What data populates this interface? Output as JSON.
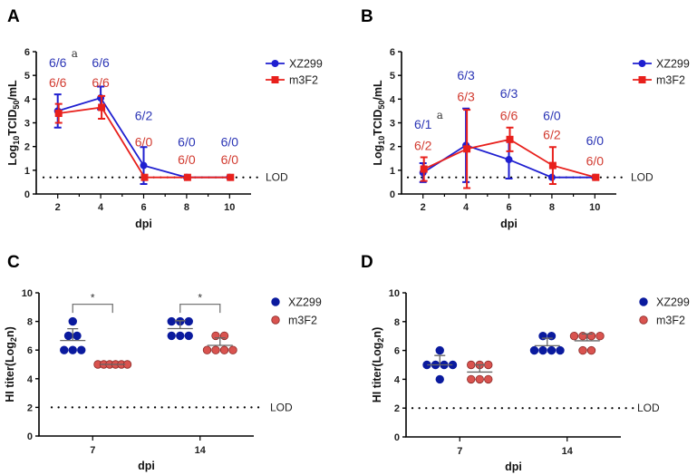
{
  "chart_data": [
    {
      "panel": "A",
      "type": "line",
      "xlabel": "dpi",
      "ylabel": {
        "base": "Log",
        "sub1": "10",
        "mid": "TCID",
        "sub2": "50",
        "end": "/mL"
      },
      "x": [
        2,
        4,
        6,
        8,
        10
      ],
      "xticks": [
        "2",
        "4",
        "6",
        "8",
        "10"
      ],
      "xlim": [
        1,
        11
      ],
      "ylim": [
        0,
        6
      ],
      "yticks": [
        "0",
        "1",
        "2",
        "3",
        "4",
        "5",
        "6"
      ],
      "grid": false,
      "legend": "top-right",
      "lod": {
        "value": 0.7,
        "label": "LOD"
      },
      "series": [
        {
          "name": "XZ299",
          "color": "#1f1fd0",
          "marker": "circle",
          "values": [
            3.5,
            4.05,
            1.2,
            0.7,
            0.7
          ],
          "errors": [
            0.7,
            0.48,
            0.78,
            0,
            0
          ]
        },
        {
          "name": "m3F2",
          "color": "#e8201c",
          "marker": "square",
          "values": [
            3.4,
            3.65,
            0.7,
            0.7,
            0.7
          ],
          "errors": [
            0.4,
            0.48,
            0,
            0,
            0
          ]
        }
      ],
      "annotations": [
        {
          "x": 2,
          "y": 5.55,
          "text": "6/6",
          "series": 0,
          "footnote": "a"
        },
        {
          "x": 2,
          "y": 4.7,
          "text": "6/6",
          "series": 1
        },
        {
          "x": 4,
          "y": 5.55,
          "text": "6/6",
          "series": 0
        },
        {
          "x": 4,
          "y": 4.7,
          "text": "6/6",
          "series": 1
        },
        {
          "x": 6,
          "y": 3.3,
          "text": "6/2",
          "series": 0
        },
        {
          "x": 6,
          "y": 2.2,
          "text": "6/0",
          "series": 1
        },
        {
          "x": 8,
          "y": 2.2,
          "text": "6/0",
          "series": 0
        },
        {
          "x": 8,
          "y": 1.45,
          "text": "6/0",
          "series": 1
        },
        {
          "x": 10,
          "y": 2.2,
          "text": "6/0",
          "series": 0
        },
        {
          "x": 10,
          "y": 1.45,
          "text": "6/0",
          "series": 1
        }
      ]
    },
    {
      "panel": "B",
      "type": "line",
      "xlabel": "dpi",
      "ylabel": {
        "base": "Log",
        "sub1": "10",
        "mid": "TCID",
        "sub2": "50",
        "end": "/mL"
      },
      "x": [
        2,
        4,
        6,
        8,
        10
      ],
      "xticks": [
        "2",
        "4",
        "6",
        "8",
        "10"
      ],
      "xlim": [
        1,
        11
      ],
      "ylim": [
        0,
        6
      ],
      "yticks": [
        "0",
        "1",
        "2",
        "3",
        "4",
        "5",
        "6"
      ],
      "grid": false,
      "legend": "top-right",
      "lod": {
        "value": 0.7,
        "label": "LOD"
      },
      "series": [
        {
          "name": "XZ299",
          "color": "#1f1fd0",
          "marker": "circle",
          "values": [
            0.9,
            2.05,
            1.45,
            0.7,
            0.7
          ],
          "errors": [
            0.4,
            1.55,
            0.8,
            0,
            0
          ]
        },
        {
          "name": "m3F2",
          "color": "#e8201c",
          "marker": "square",
          "values": [
            1.05,
            1.9,
            2.3,
            1.2,
            0.7
          ],
          "errors": [
            0.5,
            1.65,
            0.5,
            0.78,
            0
          ]
        }
      ],
      "annotations": [
        {
          "x": 2,
          "y": 2.95,
          "text": "6/1",
          "series": 0,
          "footnote": "a"
        },
        {
          "x": 2,
          "y": 2.05,
          "text": "6/2",
          "series": 1
        },
        {
          "x": 4,
          "y": 5.0,
          "text": "6/3",
          "series": 0
        },
        {
          "x": 4,
          "y": 4.1,
          "text": "6/3",
          "series": 1
        },
        {
          "x": 6,
          "y": 4.25,
          "text": "6/3",
          "series": 0
        },
        {
          "x": 6,
          "y": 3.3,
          "text": "6/6",
          "series": 1
        },
        {
          "x": 8,
          "y": 3.3,
          "text": "6/0",
          "series": 0
        },
        {
          "x": 8,
          "y": 2.5,
          "text": "6/2",
          "series": 1
        },
        {
          "x": 10,
          "y": 2.25,
          "text": "6/0",
          "series": 0
        },
        {
          "x": 10,
          "y": 1.4,
          "text": "6/0",
          "series": 1
        }
      ]
    },
    {
      "panel": "C",
      "type": "scatter",
      "xlabel": "dpi",
      "ylabel": {
        "base": "HI titer(Log",
        "sub1": "2",
        "end": "n)"
      },
      "categories": [
        "7",
        "14"
      ],
      "ylim": [
        0,
        10
      ],
      "yticks": [
        "0",
        "2",
        "4",
        "6",
        "8",
        "10"
      ],
      "grid": false,
      "legend": "top-right",
      "lod": {
        "value": 2,
        "label": "LOD"
      },
      "series": [
        {
          "name": "XZ299",
          "color": "#0a1a9e",
          "points": [
            [
              8,
              7,
              7,
              6,
              6,
              6
            ],
            [
              8,
              8,
              8,
              7,
              7,
              7
            ]
          ],
          "mean": [
            6.67,
            7.5
          ],
          "errors": [
            0.82,
            0.55
          ]
        },
        {
          "name": "m3F2",
          "color": "#d9534f",
          "points": [
            [
              5,
              5,
              5,
              5,
              5,
              5
            ],
            [
              7,
              7,
              6,
              6,
              6,
              6
            ]
          ],
          "mean": [
            5.0,
            6.33
          ],
          "errors": [
            0,
            0.52
          ]
        }
      ],
      "significance": [
        {
          "category": "7",
          "label": "*"
        },
        {
          "category": "14",
          "label": "*"
        }
      ]
    },
    {
      "panel": "D",
      "type": "scatter",
      "xlabel": "dpi",
      "ylabel": {
        "base": "HI titer(Log",
        "sub1": "2",
        "end": "n)"
      },
      "categories": [
        "7",
        "14"
      ],
      "ylim": [
        0,
        10
      ],
      "yticks": [
        "0",
        "2",
        "4",
        "6",
        "8",
        "10"
      ],
      "grid": false,
      "legend": "top-right",
      "lod": {
        "value": 2,
        "label": "LOD"
      },
      "series": [
        {
          "name": "XZ299",
          "color": "#0a1a9e",
          "points": [
            [
              6,
              5,
              5,
              5,
              5,
              4
            ],
            [
              7,
              7,
              6,
              6,
              6,
              6
            ]
          ],
          "mean": [
            5.0,
            6.33
          ],
          "errors": [
            0.65,
            0.52
          ]
        },
        {
          "name": "m3F2",
          "color": "#d9534f",
          "points": [
            [
              5,
              5,
              5,
              4,
              4,
              4
            ],
            [
              7,
              7,
              7,
              7,
              6,
              6
            ]
          ],
          "mean": [
            4.5,
            6.67
          ],
          "errors": [
            0.5,
            0.48
          ]
        }
      ],
      "significance": []
    }
  ]
}
